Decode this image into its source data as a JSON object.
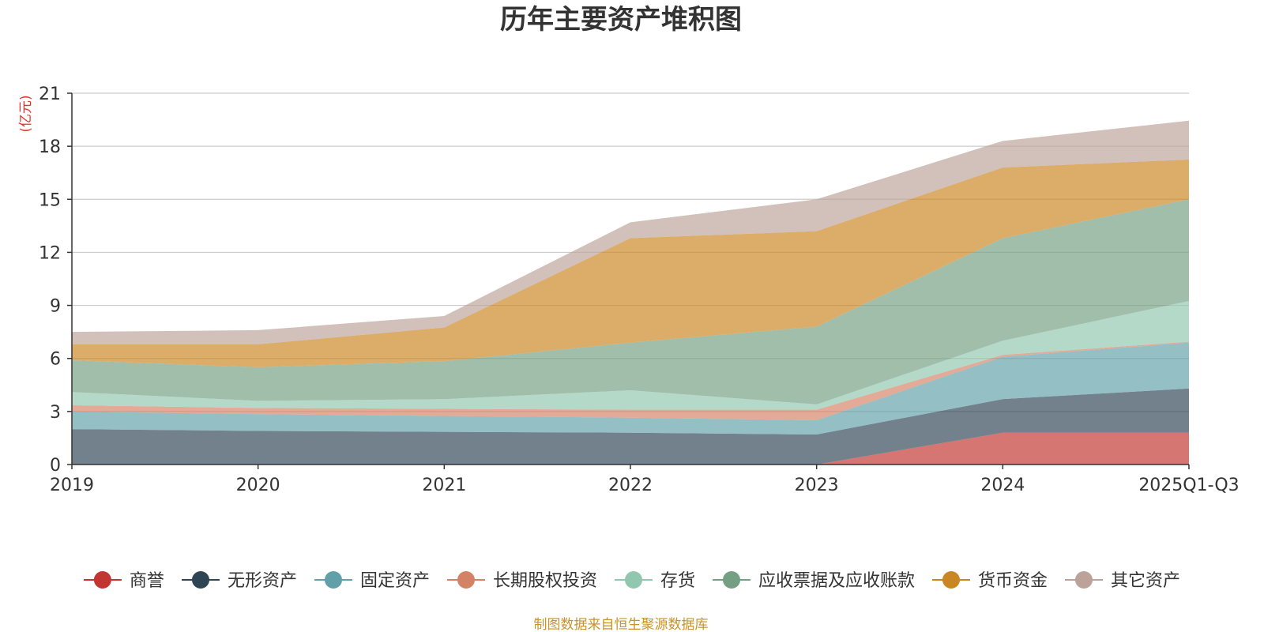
{
  "chart_data": {
    "type": "area",
    "stacked": true,
    "title": "历年主要资产堆积图",
    "unit_label": "(亿元)",
    "ylim": [
      0,
      21
    ],
    "yticks": [
      0,
      3,
      6,
      9,
      12,
      15,
      18,
      21
    ],
    "categories": [
      "2019",
      "2020",
      "2021",
      "2022",
      "2023",
      "2024",
      "2025Q1-Q3"
    ],
    "grid": true,
    "legend_position": "bottom",
    "series": [
      {
        "name": "商誉",
        "color": "#c23531",
        "values": [
          0,
          0,
          0,
          0,
          0,
          1.8,
          1.8
        ]
      },
      {
        "name": "无形资产",
        "color": "#2f4554",
        "values": [
          2.0,
          1.9,
          1.85,
          1.8,
          1.7,
          1.9,
          2.5
        ]
      },
      {
        "name": "固定资产",
        "color": "#61a0a8",
        "values": [
          1.0,
          0.95,
          0.9,
          0.85,
          0.8,
          2.4,
          2.6
        ]
      },
      {
        "name": "长期股权投资",
        "color": "#d48265",
        "values": [
          0.35,
          0.35,
          0.4,
          0.45,
          0.6,
          0.1,
          0.05
        ]
      },
      {
        "name": "存货",
        "color": "#91c7ae",
        "values": [
          0.75,
          0.4,
          0.55,
          1.1,
          0.3,
          0.8,
          2.3
        ]
      },
      {
        "name": "应收票据及应收账款",
        "color": "#749f83",
        "values": [
          1.8,
          1.9,
          2.15,
          2.7,
          4.4,
          5.8,
          5.75
        ]
      },
      {
        "name": "货币资金",
        "color": "#ca8622",
        "values": [
          0.9,
          1.3,
          1.9,
          5.9,
          5.4,
          4.0,
          2.25
        ]
      },
      {
        "name": "其它资产",
        "color": "#bda29a",
        "values": [
          0.7,
          0.8,
          0.65,
          0.9,
          1.8,
          1.5,
          2.2
        ]
      }
    ]
  },
  "source_note": "制图数据来自恒生聚源数据库"
}
